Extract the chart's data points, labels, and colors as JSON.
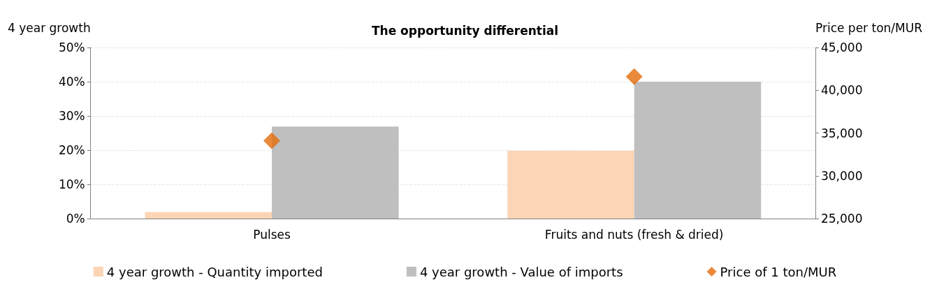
{
  "chart_data": {
    "type": "bar",
    "title": "The opportunity differential",
    "ylabel": "4 year growth",
    "y2label": "Price per ton/MUR",
    "categories": [
      "Pulses",
      "Fruits and nuts (fresh & dried)"
    ],
    "series": [
      {
        "name": "4 year growth - Quantity imported",
        "color": "#fbd5b5",
        "values": [
          1.9,
          19.8
        ]
      },
      {
        "name": "4 year growth - Value of imports",
        "color": "#bfbfbf",
        "values": [
          26.9,
          40
        ]
      },
      {
        "name": "Price of 1 ton/MUR",
        "type": "scatter",
        "axis": "y2",
        "marker": "diamond",
        "color": "#e46c0a",
        "values": [
          34100,
          41600
        ]
      }
    ],
    "ylim": [
      0,
      50
    ],
    "yticks": [
      {
        "value": 0,
        "label": "0%"
      },
      {
        "value": 10,
        "label": "10%"
      },
      {
        "value": 20,
        "label": "20%"
      },
      {
        "value": 30,
        "label": "30%"
      },
      {
        "value": 40,
        "label": "40%"
      },
      {
        "value": 50,
        "label": "50%"
      }
    ],
    "y2lim": [
      25000,
      45000
    ],
    "y2ticks": [
      {
        "value": 25000,
        "label": "25,000"
      },
      {
        "value": 30000,
        "label": "30,000"
      },
      {
        "value": 35000,
        "label": "35,000"
      },
      {
        "value": 40000,
        "label": "40,000"
      },
      {
        "value": 45000,
        "label": "45,000"
      }
    ],
    "grid": "y",
    "legend": "bottom"
  }
}
